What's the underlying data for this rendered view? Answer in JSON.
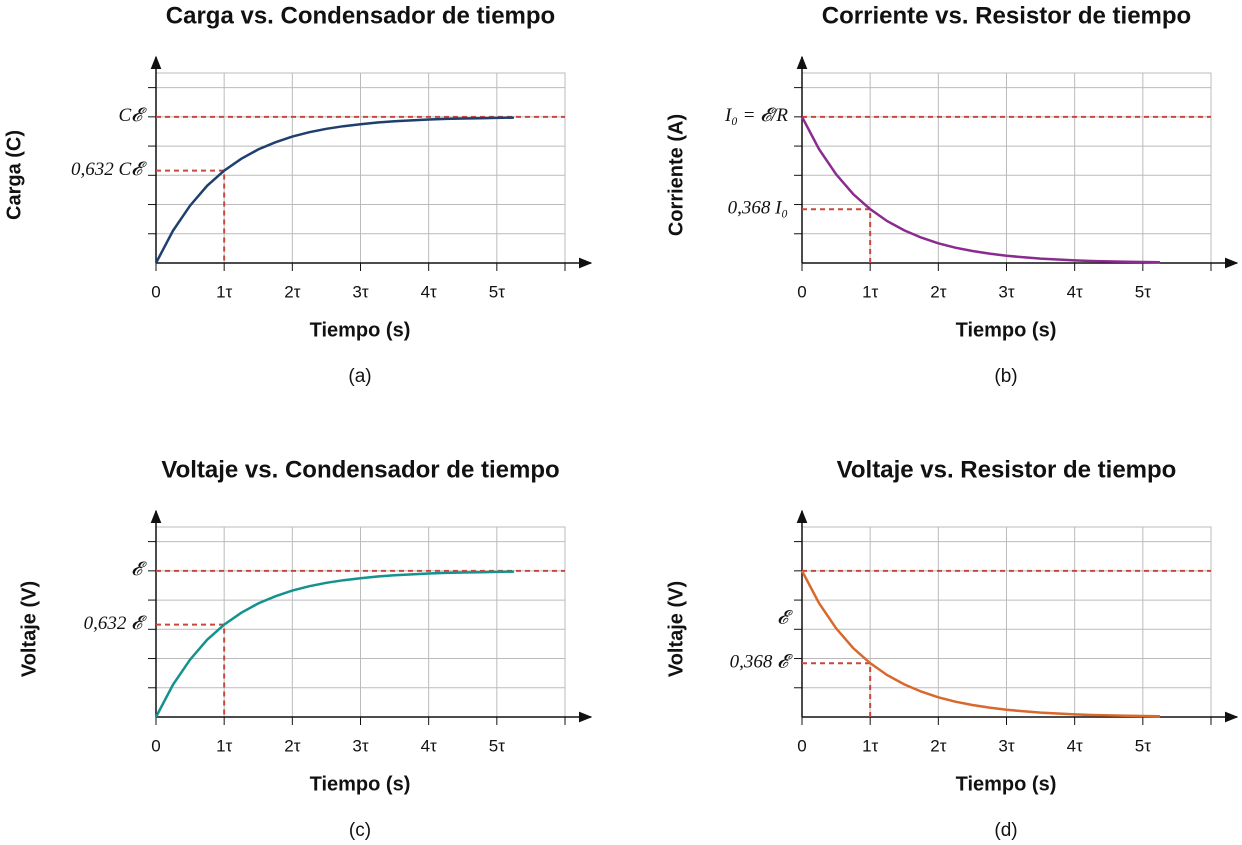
{
  "chart_data": [
    {
      "type": "line",
      "title": "Carga vs. Condensador de tiempo",
      "y_label": "Carga (C)",
      "x_label": "Tiempo (s)",
      "caption": "(a)",
      "xlim": [
        0,
        6
      ],
      "ylim": [
        0,
        1.3
      ],
      "xticks": [
        0,
        {
          "value": 1,
          "label": "1τ"
        },
        {
          "value": 2,
          "label": "2τ"
        },
        {
          "value": 3,
          "label": "3τ"
        },
        {
          "value": 4,
          "label": "4τ"
        },
        {
          "value": 5,
          "label": "5τ"
        },
        {
          "value": 6,
          "label": null
        }
      ],
      "yticks": [
        {
          "value": 0.2,
          "label": null
        },
        {
          "value": 0.4,
          "label": null
        },
        {
          "value": 0.6,
          "label": null
        },
        {
          "value": 0.8,
          "label": null
        },
        {
          "value": 1,
          "label": "C𝓔"
        },
        {
          "value": 1.2,
          "label": null
        }
      ],
      "reference_line": 1,
      "annotations": [
        {
          "text": "0,632 C𝓔",
          "x": 1,
          "y": 0.632
        }
      ],
      "grid": true,
      "x": [
        0,
        0.25,
        0.5,
        0.75,
        1,
        1.25,
        1.5,
        1.75,
        2,
        2.25,
        2.5,
        2.75,
        3,
        3.25,
        3.5,
        3.75,
        4,
        4.25,
        4.5,
        4.75,
        5,
        5.25
      ],
      "series": [
        {
          "name": null,
          "color": "#1f3f6e",
          "values": [
            0,
            0.221,
            0.393,
            0.528,
            0.632,
            0.713,
            0.777,
            0.826,
            0.865,
            0.895,
            0.918,
            0.936,
            0.95,
            0.961,
            0.97,
            0.976,
            0.982,
            0.986,
            0.989,
            0.991,
            0.993,
            0.995
          ]
        }
      ]
    },
    {
      "type": "line",
      "title": "Corriente vs. Resistor de tiempo",
      "y_label": "Corriente (A)",
      "x_label": "Tiempo (s)",
      "caption": "(b)",
      "xlim": [
        0,
        6
      ],
      "ylim": [
        0,
        1.3
      ],
      "xticks": [
        0,
        {
          "value": 1,
          "label": "1τ"
        },
        {
          "value": 2,
          "label": "2τ"
        },
        {
          "value": 3,
          "label": "3τ"
        },
        {
          "value": 4,
          "label": "4τ"
        },
        {
          "value": 5,
          "label": "5τ"
        },
        {
          "value": 6,
          "label": null
        }
      ],
      "yticks": [
        {
          "value": 0.2,
          "label": null
        },
        {
          "value": 0.4,
          "label": null
        },
        {
          "value": 0.6,
          "label": null
        },
        {
          "value": 0.8,
          "label": null
        },
        {
          "value": 1,
          "label": "I₀ = 𝓔/R"
        },
        {
          "value": 1.2,
          "label": null
        }
      ],
      "reference_line": 1,
      "annotations": [
        {
          "text": "0,368 I₀",
          "x": 1,
          "y": 0.368
        }
      ],
      "grid": true,
      "x": [
        0,
        0.25,
        0.5,
        0.75,
        1,
        1.25,
        1.5,
        1.75,
        2,
        2.25,
        2.5,
        2.75,
        3,
        3.25,
        3.5,
        3.75,
        4,
        4.25,
        4.5,
        4.75,
        5,
        5.25
      ],
      "series": [
        {
          "name": null,
          "color": "#8b2b8f",
          "values": [
            1,
            0.779,
            0.607,
            0.472,
            0.368,
            0.287,
            0.223,
            0.174,
            0.135,
            0.105,
            0.082,
            0.064,
            0.05,
            0.039,
            0.03,
            0.024,
            0.018,
            0.014,
            0.011,
            0.009,
            0.007,
            0.005
          ]
        }
      ]
    },
    {
      "type": "line",
      "title": "Voltaje vs. Condensador de tiempo",
      "y_label": "Voltaje (V)",
      "x_label": "Tiempo (s)",
      "caption": "(c)",
      "xlim": [
        0,
        6
      ],
      "ylim": [
        0,
        1.3
      ],
      "xticks": [
        0,
        {
          "value": 1,
          "label": "1τ"
        },
        {
          "value": 2,
          "label": "2τ"
        },
        {
          "value": 3,
          "label": "3τ"
        },
        {
          "value": 4,
          "label": "4τ"
        },
        {
          "value": 5,
          "label": "5τ"
        },
        {
          "value": 6,
          "label": null
        }
      ],
      "yticks": [
        {
          "value": 0.2,
          "label": null
        },
        {
          "value": 0.4,
          "label": null
        },
        {
          "value": 0.6,
          "label": null
        },
        {
          "value": 0.8,
          "label": null
        },
        {
          "value": 1,
          "label": "𝓔"
        },
        {
          "value": 1.2,
          "label": null
        }
      ],
      "reference_line": 1,
      "annotations": [
        {
          "text": "0,632 𝓔",
          "x": 1,
          "y": 0.632
        }
      ],
      "grid": true,
      "x": [
        0,
        0.25,
        0.5,
        0.75,
        1,
        1.25,
        1.5,
        1.75,
        2,
        2.25,
        2.5,
        2.75,
        3,
        3.25,
        3.5,
        3.75,
        4,
        4.25,
        4.5,
        4.75,
        5,
        5.25
      ],
      "series": [
        {
          "name": null,
          "color": "#14928e",
          "values": [
            0,
            0.221,
            0.393,
            0.528,
            0.632,
            0.713,
            0.777,
            0.826,
            0.865,
            0.895,
            0.918,
            0.936,
            0.95,
            0.961,
            0.97,
            0.976,
            0.982,
            0.986,
            0.989,
            0.991,
            0.993,
            0.995
          ]
        }
      ]
    },
    {
      "type": "line",
      "title": "Voltaje vs. Resistor de tiempo",
      "y_label": "Voltaje (V)",
      "x_label": "Tiempo (s)",
      "caption": "(d)",
      "xlim": [
        0,
        6
      ],
      "ylim": [
        0,
        1.3
      ],
      "xticks": [
        0,
        {
          "value": 1,
          "label": "1τ"
        },
        {
          "value": 2,
          "label": "2τ"
        },
        {
          "value": 3,
          "label": "3τ"
        },
        {
          "value": 4,
          "label": "4τ"
        },
        {
          "value": 5,
          "label": "5τ"
        },
        {
          "value": 6,
          "label": null
        }
      ],
      "yticks": [
        {
          "value": 0.2,
          "label": null
        },
        {
          "value": 0.4,
          "label": null
        },
        {
          "value": 0.6,
          "label": null
        },
        {
          "value": 0.8,
          "label": null
        },
        {
          "value": 1,
          "label": null
        },
        {
          "value": 1.2,
          "label": null
        }
      ],
      "reference_line": 1,
      "annotations": [
        {
          "text": "𝓔",
          "y": 0.67
        },
        {
          "text": "0,368 𝓔",
          "x": 1,
          "y": 0.368
        }
      ],
      "grid": true,
      "x": [
        0,
        0.25,
        0.5,
        0.75,
        1,
        1.25,
        1.5,
        1.75,
        2,
        2.25,
        2.5,
        2.75,
        3,
        3.25,
        3.5,
        3.75,
        4,
        4.25,
        4.5,
        4.75,
        5,
        5.25
      ],
      "series": [
        {
          "name": null,
          "color": "#d9682c",
          "values": [
            1,
            0.779,
            0.607,
            0.472,
            0.368,
            0.287,
            0.223,
            0.174,
            0.135,
            0.105,
            0.082,
            0.064,
            0.05,
            0.039,
            0.03,
            0.024,
            0.018,
            0.014,
            0.011,
            0.009,
            0.007,
            0.005
          ]
        }
      ]
    }
  ]
}
